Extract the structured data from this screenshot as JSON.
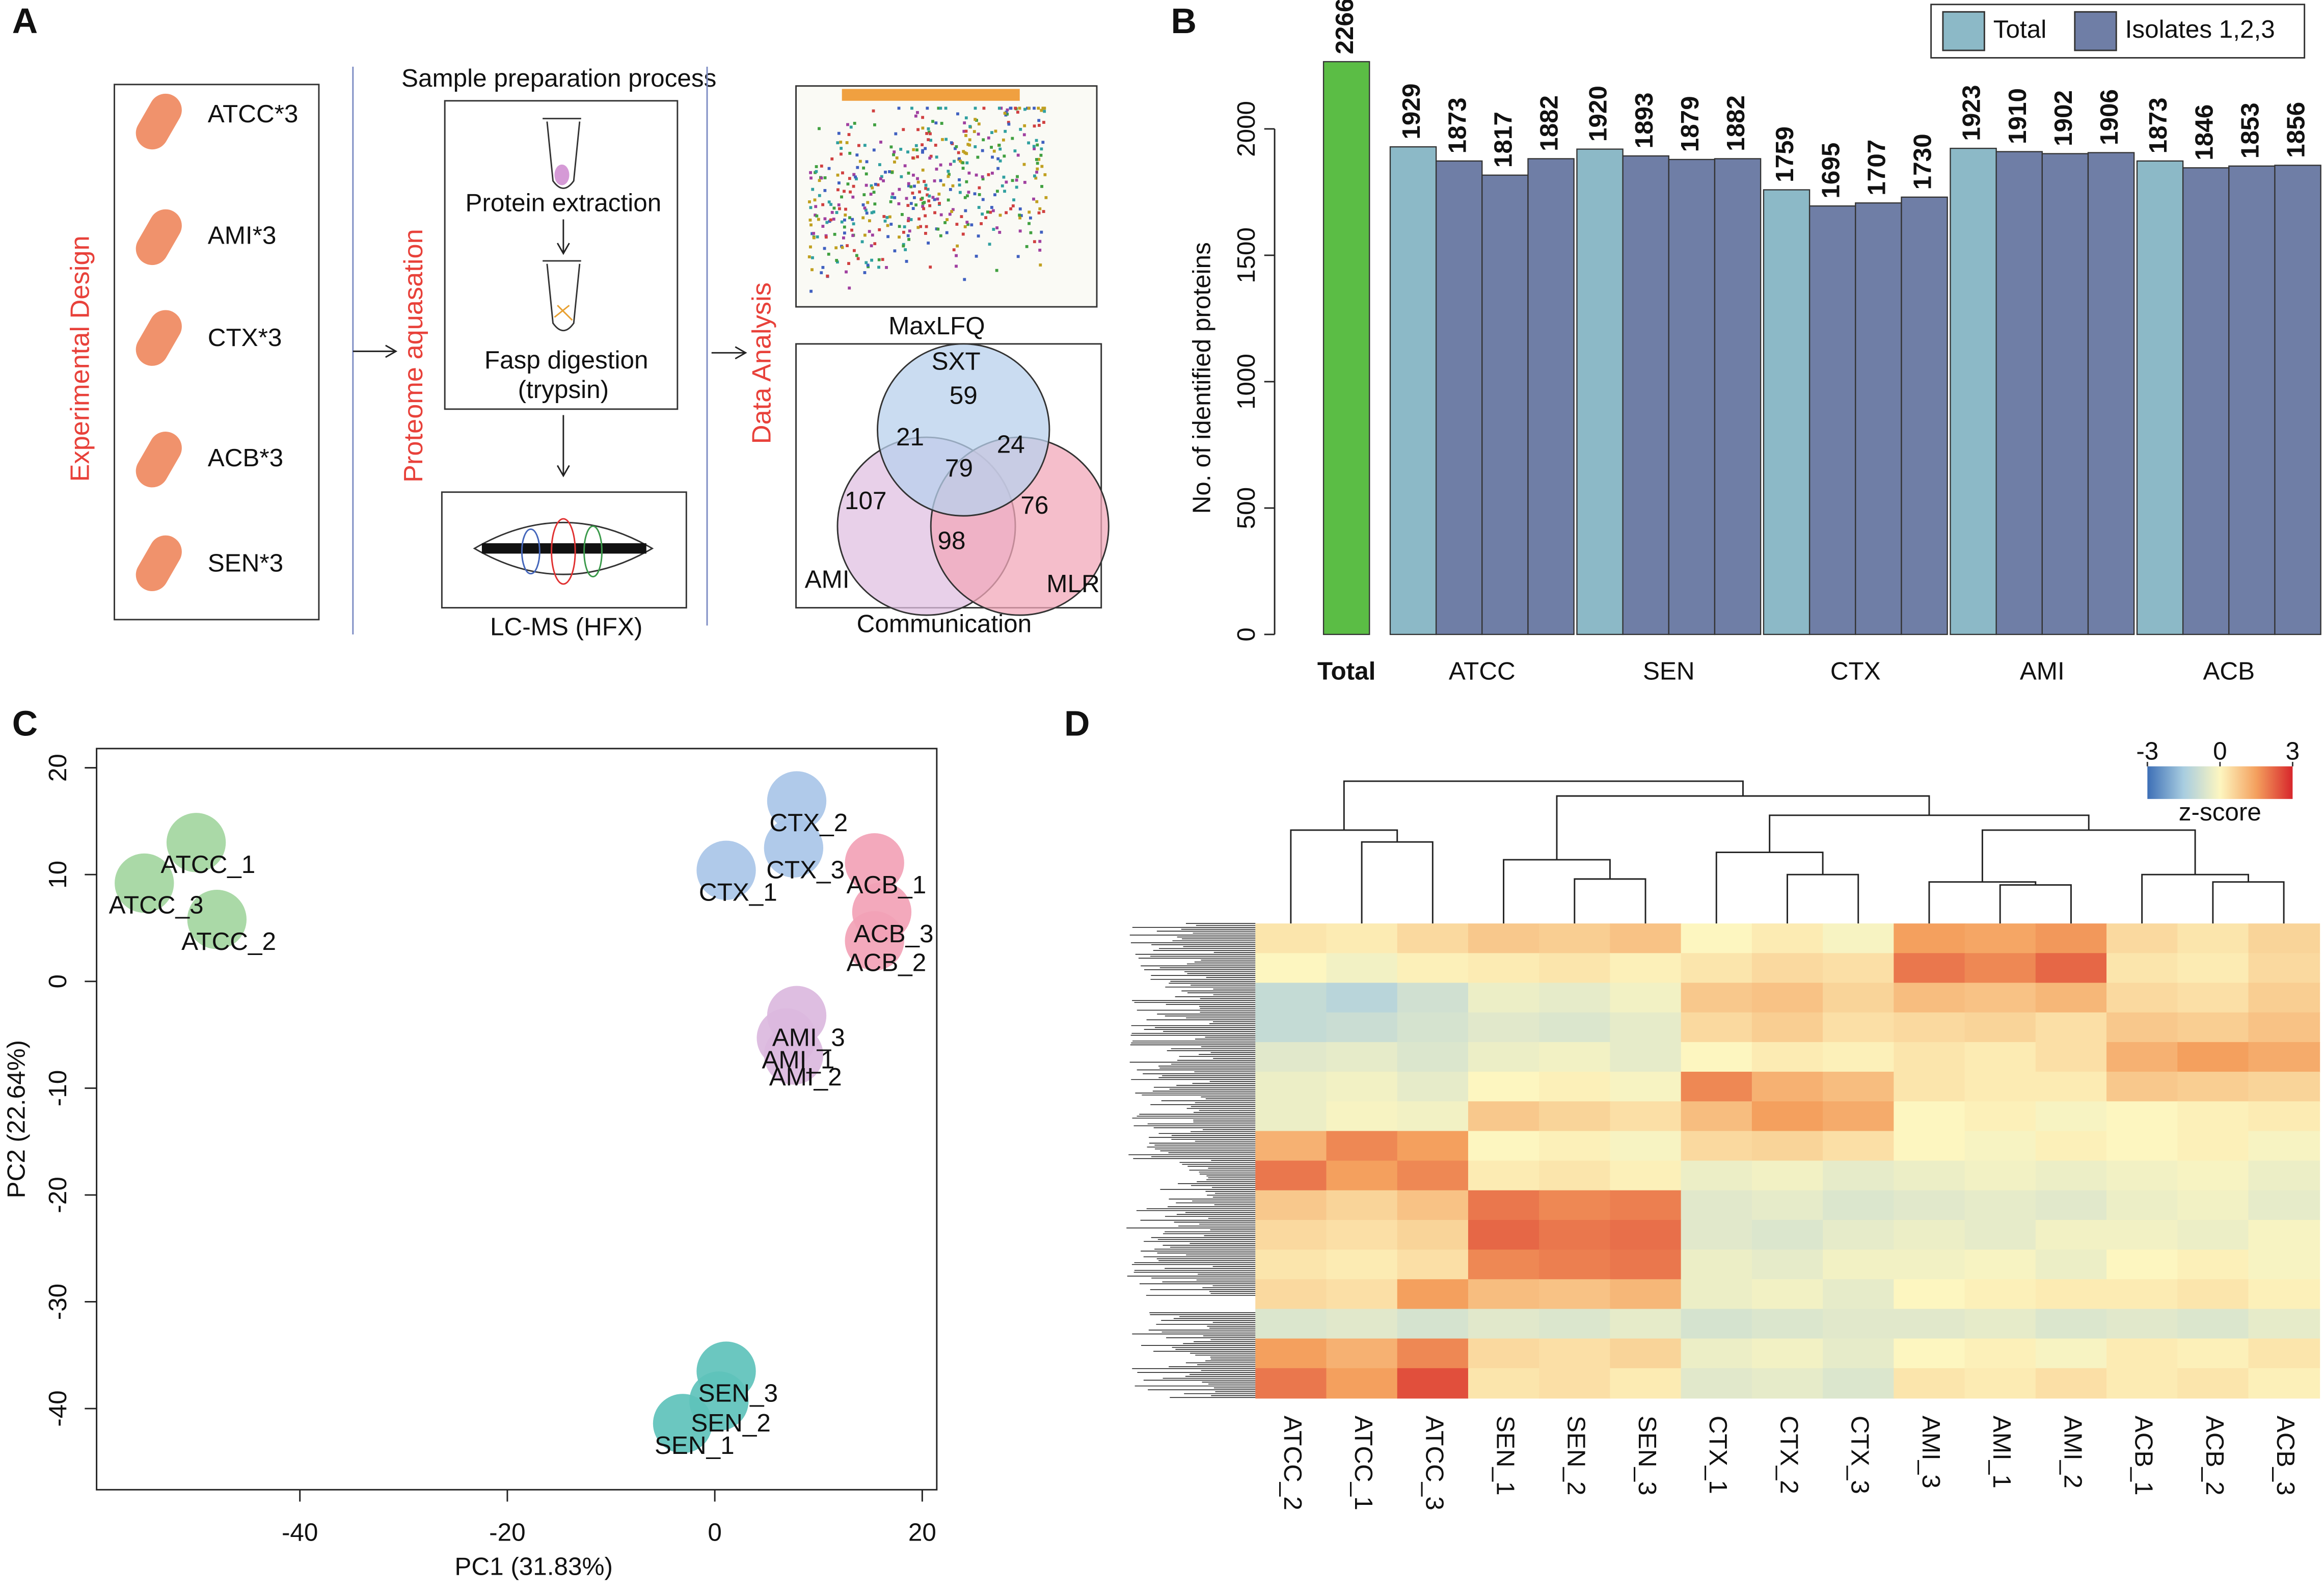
{
  "panel_labels": [
    "A",
    "B",
    "C",
    "D"
  ],
  "diagram": {
    "design_title": "Experimental Design",
    "strains": [
      "ATCC*3",
      "AMI*3",
      "CTX*3",
      "ACB*3",
      "SEN*3"
    ],
    "prep_title": "Sample preparation process",
    "proteome_title": "Proteome aquasation",
    "extraction": "Protein extraction",
    "digestion": [
      "Fasp digestion",
      "(trypsin)"
    ],
    "lcms": "LC-MS (HFX)",
    "analysis_title": "Data Analysis",
    "maxlfq": "MaxLFQ",
    "communication": "Communication",
    "venn": {
      "sets": [
        "SXT",
        "AMI",
        "MLR"
      ],
      "regions": [
        59,
        21,
        24,
        79,
        107,
        98,
        76
      ]
    }
  },
  "chart_data": [
    {
      "type": "bar",
      "ylabel": "No. of identified proteins",
      "categories": [
        "Total",
        "ATCC",
        "SEN",
        "CTX",
        "AMI",
        "ACB"
      ],
      "series": [
        {
          "name": "Total",
          "color": "#8cb9c7",
          "values": [
            2266,
            1929,
            1920,
            1759,
            1923,
            1873
          ]
        },
        {
          "name": "Isolates 1,2,3",
          "color": "#6f7ea6",
          "values": [
            null,
            [
              1873,
              1817,
              1882
            ],
            [
              1893,
              1879,
              1882
            ],
            [
              1695,
              1707,
              1730
            ],
            [
              1910,
              1902,
              1906
            ],
            [
              1846,
              1853,
              1856
            ]
          ]
        }
      ],
      "highlight_color": "#5bbd45",
      "ylim": [
        0,
        2334
      ],
      "yticks": [
        0,
        500,
        1000,
        1500,
        2000
      ],
      "legend": "top right"
    },
    {
      "type": "scatter",
      "xlabel": "PC1 (31.83%)",
      "ylabel": "PC2 (22.64%)",
      "xlim": [
        -59.6,
        21.4
      ],
      "ylim": [
        -47.6,
        21.8
      ],
      "xticks": [
        -40,
        -20,
        0,
        20
      ],
      "yticks": [
        -40,
        -30,
        -20,
        -10,
        0,
        10,
        20
      ],
      "series": [
        {
          "color": "#a3d6a0",
          "x": [
            -50,
            -55,
            -48
          ],
          "values": [
            13,
            9.2,
            5.8
          ],
          "labels": [
            "ATCC_1",
            "ATCC_3",
            "ATCC_2"
          ]
        },
        {
          "color": "#a9c6e8",
          "x": [
            7.9,
            7.6,
            1.1
          ],
          "values": [
            16.9,
            12.5,
            10.4
          ],
          "labels": [
            "CTX_2",
            "CTX_3",
            "CTX_1"
          ]
        },
        {
          "color": "#f2a2b6",
          "x": [
            15.4,
            16.1,
            15.4
          ],
          "values": [
            11.1,
            6.5,
            3.8
          ],
          "labels": [
            "ACB_1",
            "ACB_3",
            "ACB_2"
          ]
        },
        {
          "color": "#dbb9de",
          "x": [
            7.9,
            6.9,
            7.6
          ],
          "values": [
            -3.2,
            -5.3,
            -6.9
          ],
          "labels": [
            "AMI_3",
            "AMI_1",
            "AMI_2"
          ]
        },
        {
          "color": "#5ec2bb",
          "x": [
            1.1,
            0.4,
            -3.1
          ],
          "values": [
            -36.5,
            -39.3,
            -41.4
          ],
          "labels": [
            "SEN_3",
            "SEN_2",
            "SEN_1"
          ]
        }
      ]
    },
    {
      "type": "heatmap",
      "columns": [
        "ATCC_2",
        "ATCC_1",
        "ATCC_3",
        "SEN_1",
        "SEN_2",
        "SEN_3",
        "CTX_1",
        "CTX_2",
        "CTX_3",
        "AMI_3",
        "AMI_1",
        "AMI_2",
        "ACB_1",
        "ACB_2",
        "ACB_3"
      ],
      "zlim": [
        -3,
        3
      ],
      "zticks": [
        -3,
        0,
        3
      ],
      "colorbar_label": "z-score",
      "colors": [
        "#3d6fb6",
        "#a8cde0",
        "#fdf6c0",
        "#f4a05e",
        "#d7262b"
      ],
      "values": [
        [
          0.3,
          0.2,
          0.5,
          0.8,
          0.7,
          0.9,
          0,
          0.2,
          -0.1,
          1.5,
          1.4,
          1.6,
          0.5,
          0.3,
          0.6
        ],
        [
          0,
          -0.2,
          0.1,
          0.2,
          0.3,
          0.1,
          0.3,
          0.5,
          0.4,
          2,
          1.8,
          2.2,
          0.3,
          0.2,
          0.5
        ],
        [
          -1,
          -1.2,
          -0.8,
          -0.3,
          -0.4,
          -0.2,
          0.8,
          0.9,
          0.6,
          1,
          0.9,
          1.1,
          0.5,
          0.4,
          0.7
        ],
        [
          -1,
          -0.9,
          -0.7,
          -0.5,
          -0.6,
          -0.4,
          0.5,
          0.7,
          0.4,
          0.5,
          0.6,
          0.4,
          0.8,
          0.7,
          0.9
        ],
        [
          -0.5,
          -0.4,
          -0.6,
          -0.3,
          -0.2,
          -0.4,
          0,
          0.2,
          0.1,
          0.3,
          0.2,
          0.4,
          1.2,
          1.5,
          1.3
        ],
        [
          -0.3,
          -0.2,
          -0.4,
          0,
          0.1,
          -0.1,
          1.8,
          1.2,
          1,
          0.3,
          0.2,
          0.2,
          0.8,
          0.7,
          0.6
        ],
        [
          -0.3,
          -0.1,
          -0.2,
          0.8,
          0.6,
          0.4,
          1,
          1.5,
          1.3,
          0,
          0.1,
          -0.1,
          0,
          0.1,
          0.2
        ],
        [
          1.2,
          1.8,
          1.5,
          0,
          0.1,
          -0.1,
          0.5,
          0.6,
          0.4,
          0,
          -0.1,
          0.1,
          0,
          0.1,
          -0.1
        ],
        [
          2,
          1.5,
          1.8,
          0.2,
          0.3,
          0.1,
          -0.3,
          -0.2,
          -0.4,
          -0.3,
          -0.2,
          -0.3,
          -0.2,
          -0.1,
          -0.3
        ],
        [
          0.8,
          0.6,
          0.9,
          2,
          1.8,
          1.9,
          -0.5,
          -0.4,
          -0.6,
          -0.5,
          -0.4,
          -0.5,
          -0.3,
          -0.2,
          -0.4
        ],
        [
          0.5,
          0.4,
          0.6,
          2.2,
          2,
          2.1,
          -0.5,
          -0.6,
          -0.4,
          -0.3,
          -0.4,
          -0.2,
          -0.2,
          -0.3,
          -0.1
        ],
        [
          0.3,
          0.2,
          0.4,
          1.8,
          1.9,
          2,
          -0.3,
          -0.4,
          -0.2,
          -0.2,
          -0.1,
          -0.3,
          0,
          0.1,
          -0.1
        ],
        [
          0.5,
          0.4,
          1.5,
          1,
          0.9,
          1.1,
          -0.3,
          -0.2,
          -0.4,
          0,
          0.1,
          0.2,
          0.2,
          0.3,
          0.1
        ],
        [
          -0.6,
          -0.5,
          -0.7,
          -0.5,
          -0.6,
          -0.4,
          -0.7,
          -0.6,
          -0.5,
          -0.5,
          -0.4,
          -0.6,
          -0.5,
          -0.6,
          -0.4
        ],
        [
          1.5,
          1.2,
          1.8,
          0.5,
          0.4,
          0.6,
          -0.3,
          -0.2,
          -0.4,
          0,
          0.1,
          -0.1,
          0.2,
          0.1,
          0.3
        ],
        [
          2,
          1.5,
          2.5,
          0.3,
          0.4,
          0.2,
          -0.5,
          -0.4,
          -0.6,
          0.3,
          0.2,
          0.4,
          0.2,
          0.3,
          0.1
        ]
      ]
    }
  ]
}
